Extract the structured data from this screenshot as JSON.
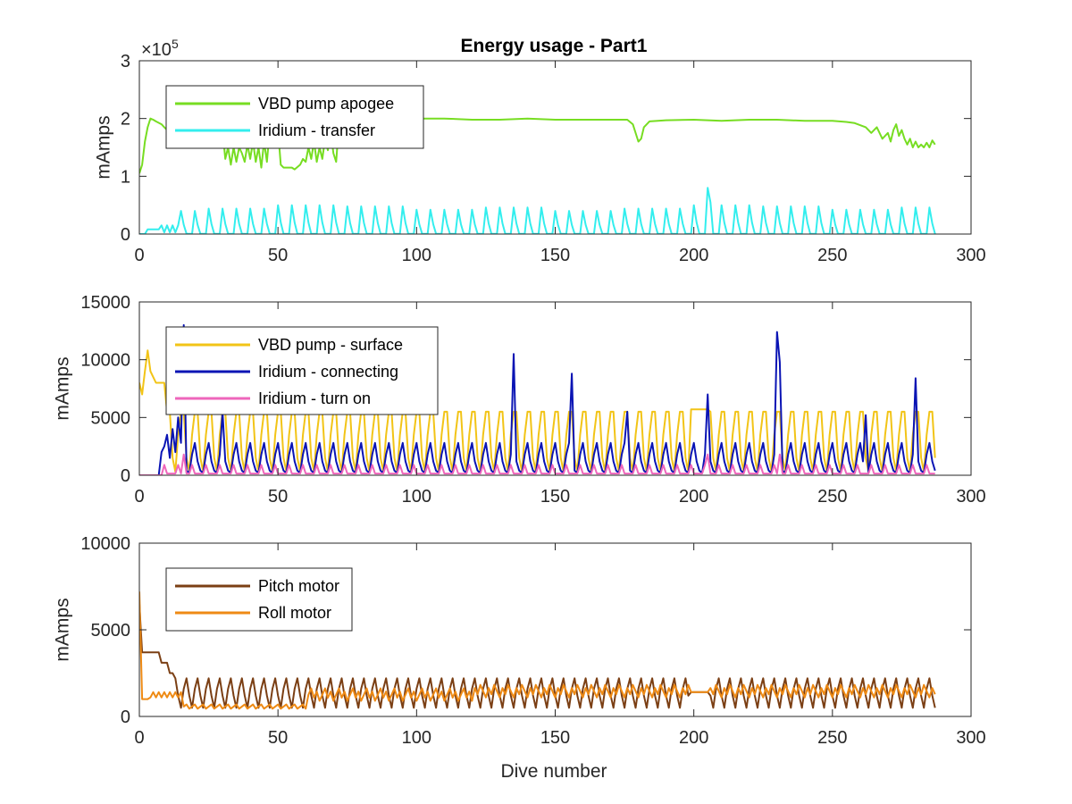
{
  "figure": {
    "title": "Energy usage - Part1",
    "xlabel": "Dive number"
  },
  "chart_data": [
    {
      "type": "line",
      "title": "Energy usage - Part1",
      "xlabel": "",
      "ylabel": "mAmps",
      "xlim": [
        0,
        300
      ],
      "ylim": [
        0,
        300000
      ],
      "xticks": [
        0,
        50,
        100,
        150,
        200,
        250,
        300
      ],
      "xtick_labels": [
        "0",
        "50",
        "100",
        "150",
        "200",
        "250",
        "300"
      ],
      "yticks": [
        0,
        100000,
        200000,
        300000
      ],
      "ytick_labels": [
        "0",
        "1",
        "2",
        "3"
      ],
      "exponent_label": "×10",
      "exponent_power": "5",
      "legend_position": "top-left",
      "grid": false,
      "series": [
        {
          "name": "VBD pump apogee",
          "color": "#77dd22",
          "points": [
            [
              0,
              105000
            ],
            [
              1,
              120000
            ],
            [
              2,
              160000
            ],
            [
              3,
              185000
            ],
            [
              4,
              200000
            ],
            [
              5,
              198000
            ],
            [
              6,
              195000
            ],
            [
              8,
              190000
            ],
            [
              9,
              185000
            ],
            [
              10,
              180000
            ],
            [
              12,
              180000
            ],
            [
              15,
              180000
            ],
            [
              18,
              180000
            ],
            [
              20,
              180000
            ],
            [
              22,
              180000
            ],
            [
              25,
              180000
            ],
            [
              28,
              180000
            ],
            [
              30,
              180000
            ],
            [
              31,
              130000
            ],
            [
              32,
              150000
            ],
            [
              33,
              120000
            ],
            [
              34,
              150000
            ],
            [
              35,
              125000
            ],
            [
              36,
              150000
            ],
            [
              37,
              140000
            ],
            [
              38,
              125000
            ],
            [
              39,
              155000
            ],
            [
              40,
              130000
            ],
            [
              41,
              160000
            ],
            [
              42,
              125000
            ],
            [
              43,
              150000
            ],
            [
              44,
              115000
            ],
            [
              45,
              160000
            ],
            [
              46,
              125000
            ],
            [
              47,
              180000
            ],
            [
              48,
              180000
            ],
            [
              50,
              180000
            ],
            [
              51,
              120000
            ],
            [
              52,
              115000
            ],
            [
              53,
              115000
            ],
            [
              55,
              115000
            ],
            [
              56,
              112000
            ],
            [
              58,
              120000
            ],
            [
              59,
              130000
            ],
            [
              60,
              125000
            ],
            [
              61,
              150000
            ],
            [
              62,
              130000
            ],
            [
              63,
              160000
            ],
            [
              64,
              125000
            ],
            [
              65,
              150000
            ],
            [
              66,
              130000
            ],
            [
              67,
              165000
            ],
            [
              68,
              145000
            ],
            [
              69,
              180000
            ],
            [
              70,
              140000
            ],
            [
              71,
              125000
            ],
            [
              72,
              190000
            ],
            [
              75,
              195000
            ],
            [
              80,
              195000
            ],
            [
              85,
              198000
            ],
            [
              90,
              200000
            ],
            [
              95,
              198000
            ],
            [
              100,
              200000
            ],
            [
              110,
              200000
            ],
            [
              120,
              198000
            ],
            [
              130,
              198000
            ],
            [
              140,
              200000
            ],
            [
              150,
              198000
            ],
            [
              160,
              198000
            ],
            [
              170,
              198000
            ],
            [
              176,
              198000
            ],
            [
              178,
              190000
            ],
            [
              180,
              160000
            ],
            [
              181,
              165000
            ],
            [
              182,
              185000
            ],
            [
              184,
              195000
            ],
            [
              190,
              197000
            ],
            [
              200,
              198000
            ],
            [
              210,
              196000
            ],
            [
              220,
              198000
            ],
            [
              230,
              198000
            ],
            [
              240,
              196000
            ],
            [
              250,
              196000
            ],
            [
              255,
              194000
            ],
            [
              258,
              192000
            ],
            [
              262,
              185000
            ],
            [
              264,
              175000
            ],
            [
              266,
              185000
            ],
            [
              268,
              165000
            ],
            [
              270,
              175000
            ],
            [
              271,
              160000
            ],
            [
              272,
              180000
            ],
            [
              273,
              190000
            ],
            [
              274,
              170000
            ],
            [
              275,
              180000
            ],
            [
              276,
              165000
            ],
            [
              277,
              155000
            ],
            [
              278,
              165000
            ],
            [
              279,
              150000
            ],
            [
              280,
              160000
            ],
            [
              281,
              150000
            ],
            [
              282,
              155000
            ],
            [
              283,
              150000
            ],
            [
              284,
              158000
            ],
            [
              285,
              150000
            ],
            [
              286,
              162000
            ],
            [
              287,
              155000
            ]
          ]
        },
        {
          "name": "Iridium - transfer",
          "color": "#33eeee",
          "points": []
        }
      ]
    },
    {
      "type": "line",
      "title": "",
      "xlabel": "",
      "ylabel": "mAmps",
      "xlim": [
        0,
        300
      ],
      "ylim": [
        0,
        15000
      ],
      "xticks": [
        0,
        50,
        100,
        150,
        200,
        250,
        300
      ],
      "xtick_labels": [
        "0",
        "50",
        "100",
        "150",
        "200",
        "250",
        "300"
      ],
      "yticks": [
        0,
        5000,
        10000,
        15000
      ],
      "ytick_labels": [
        "0",
        "5000",
        "10000",
        "15000"
      ],
      "legend_position": "top-left",
      "grid": false,
      "series": [
        {
          "name": "VBD pump - surface",
          "color": "#f2c417",
          "points": []
        },
        {
          "name": "Iridium - connecting",
          "color": "#0a14b4",
          "points": []
        },
        {
          "name": "Iridium - turn on",
          "color": "#ee66bb",
          "points": []
        }
      ]
    },
    {
      "type": "line",
      "title": "",
      "xlabel": "Dive number",
      "ylabel": "mAmps",
      "xlim": [
        0,
        300
      ],
      "ylim": [
        0,
        10000
      ],
      "xticks": [
        0,
        50,
        100,
        150,
        200,
        250,
        300
      ],
      "xtick_labels": [
        "0",
        "50",
        "100",
        "150",
        "200",
        "250",
        "300"
      ],
      "yticks": [
        0,
        5000,
        10000
      ],
      "ytick_labels": [
        "0",
        "5000",
        "10000"
      ],
      "legend_position": "top-left",
      "grid": false,
      "series": [
        {
          "name": "Pitch motor",
          "color": "#7b3f14",
          "points": []
        },
        {
          "name": "Roll motor",
          "color": "#ee8a14",
          "points": []
        }
      ]
    }
  ]
}
